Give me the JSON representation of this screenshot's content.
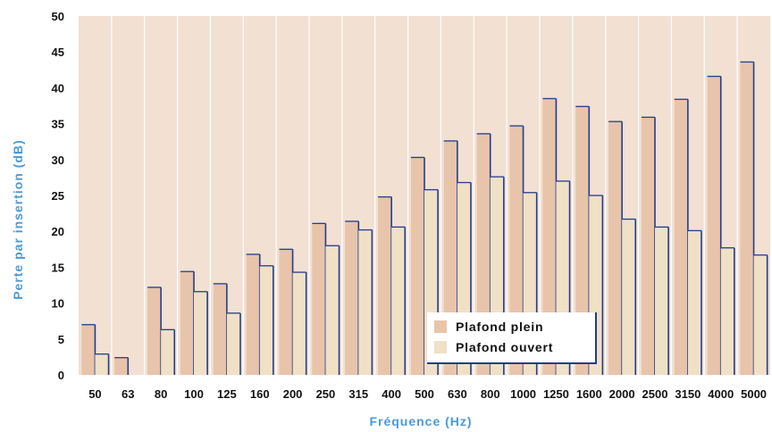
{
  "chart_data": {
    "type": "bar",
    "title": "",
    "xlabel": "Fréquence (Hz)",
    "ylabel": "Perte par insertion (dB)",
    "ylim": [
      0,
      50
    ],
    "yticks": [
      0,
      5,
      10,
      15,
      20,
      25,
      30,
      35,
      40,
      45,
      50
    ],
    "grid": "vertical",
    "legend_position": "bottom-center",
    "categories": [
      "50",
      "63",
      "80",
      "100",
      "125",
      "160",
      "200",
      "250",
      "315",
      "400",
      "500",
      "630",
      "800",
      "1000",
      "1250",
      "1600",
      "2000",
      "2500",
      "3150",
      "4000",
      "5000"
    ],
    "series": [
      {
        "name": "Plafond plein",
        "color": "#e8c4aa",
        "values": [
          7.0,
          2.4,
          12.2,
          14.4,
          12.7,
          16.8,
          17.5,
          21.1,
          21.4,
          24.8,
          30.3,
          32.6,
          33.6,
          34.7,
          38.5,
          37.4,
          35.3,
          35.9,
          38.4,
          41.6,
          43.6
        ]
      },
      {
        "name": "Plafond ouvert",
        "color": "#f0e0c6",
        "values": [
          2.9,
          0,
          6.3,
          11.6,
          8.6,
          15.2,
          14.3,
          18.0,
          20.2,
          20.6,
          25.8,
          26.8,
          27.6,
          25.4,
          27.0,
          25.0,
          21.7,
          20.6,
          20.1,
          17.7,
          16.7
        ]
      }
    ],
    "colors": {
      "plot_background": "#f2e0d2",
      "gridline": "#ffffff",
      "bar_outline": "#1f3e8c",
      "axis_title": "#4a9ad6"
    }
  }
}
